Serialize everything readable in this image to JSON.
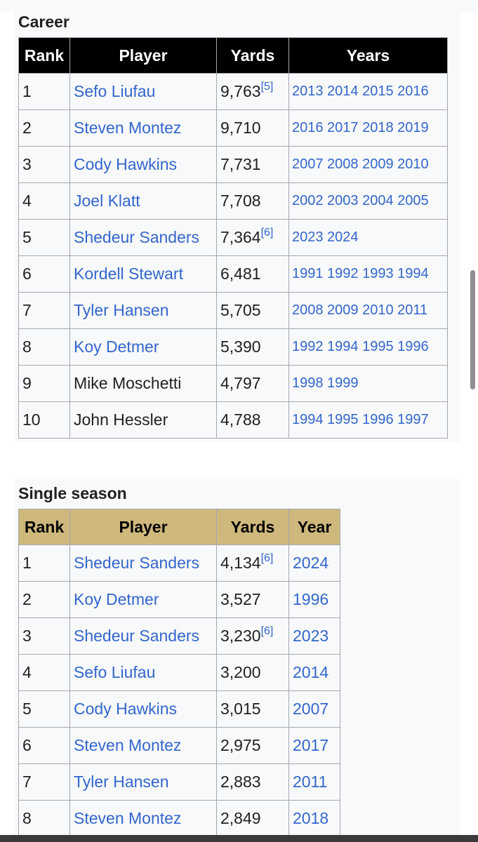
{
  "career": {
    "caption": "Career",
    "headers": {
      "rank": "Rank",
      "player": "Player",
      "yards": "Yards",
      "years": "Years"
    },
    "rows": [
      {
        "rank": "1",
        "player": "Sefo Liufau",
        "player_link": true,
        "yards": "9,763",
        "ref": "[5]",
        "years": "2013 2014 2015 2016"
      },
      {
        "rank": "2",
        "player": "Steven Montez",
        "player_link": true,
        "yards": "9,710",
        "ref": "",
        "years": "2016 2017 2018 2019"
      },
      {
        "rank": "3",
        "player": "Cody Hawkins",
        "player_link": true,
        "yards": "7,731",
        "ref": "",
        "years": "2007 2008 2009 2010"
      },
      {
        "rank": "4",
        "player": "Joel Klatt",
        "player_link": true,
        "yards": "7,708",
        "ref": "",
        "years": "2002 2003 2004 2005"
      },
      {
        "rank": "5",
        "player": "Shedeur Sanders",
        "player_link": true,
        "yards": "7,364",
        "ref": "[6]",
        "years": "2023 2024"
      },
      {
        "rank": "6",
        "player": "Kordell Stewart",
        "player_link": true,
        "yards": "6,481",
        "ref": "",
        "years": "1991 1992 1993 1994"
      },
      {
        "rank": "7",
        "player": "Tyler Hansen",
        "player_link": true,
        "yards": "5,705",
        "ref": "",
        "years": "2008 2009 2010 2011"
      },
      {
        "rank": "8",
        "player": "Koy Detmer",
        "player_link": true,
        "yards": "5,390",
        "ref": "",
        "years": "1992 1994 1995 1996"
      },
      {
        "rank": "9",
        "player": "Mike Moschetti",
        "player_link": false,
        "yards": "4,797",
        "ref": "",
        "years": "1998 1999"
      },
      {
        "rank": "10",
        "player": "John Hessler",
        "player_link": false,
        "yards": "4,788",
        "ref": "",
        "years": "1994 1995 1996 1997"
      }
    ]
  },
  "single_season": {
    "caption": "Single season",
    "headers": {
      "rank": "Rank",
      "player": "Player",
      "yards": "Yards",
      "year": "Year"
    },
    "rows": [
      {
        "rank": "1",
        "player": "Shedeur Sanders",
        "player_link": true,
        "yards": "4,134",
        "ref": "[6]",
        "year": "2024"
      },
      {
        "rank": "2",
        "player": "Koy Detmer",
        "player_link": true,
        "yards": "3,527",
        "ref": "",
        "year": "1996"
      },
      {
        "rank": "3",
        "player": "Shedeur Sanders",
        "player_link": true,
        "yards": "3,230",
        "ref": "[6]",
        "year": "2023"
      },
      {
        "rank": "4",
        "player": "Sefo Liufau",
        "player_link": true,
        "yards": "3,200",
        "ref": "",
        "year": "2014"
      },
      {
        "rank": "5",
        "player": "Cody Hawkins",
        "player_link": true,
        "yards": "3,015",
        "ref": "",
        "year": "2007"
      },
      {
        "rank": "6",
        "player": "Steven Montez",
        "player_link": true,
        "yards": "2,975",
        "ref": "",
        "year": "2017"
      },
      {
        "rank": "7",
        "player": "Tyler Hansen",
        "player_link": true,
        "yards": "2,883",
        "ref": "",
        "year": "2011"
      },
      {
        "rank": "8",
        "player": "Steven Montez",
        "player_link": true,
        "yards": "2,849",
        "ref": "",
        "year": "2018"
      }
    ]
  },
  "colors": {
    "link": "#3366cc",
    "career_header_bg": "#000000",
    "season_header_bg": "#cfb87c",
    "table_bg": "#f8f9fa",
    "border": "#a2a9b1"
  }
}
